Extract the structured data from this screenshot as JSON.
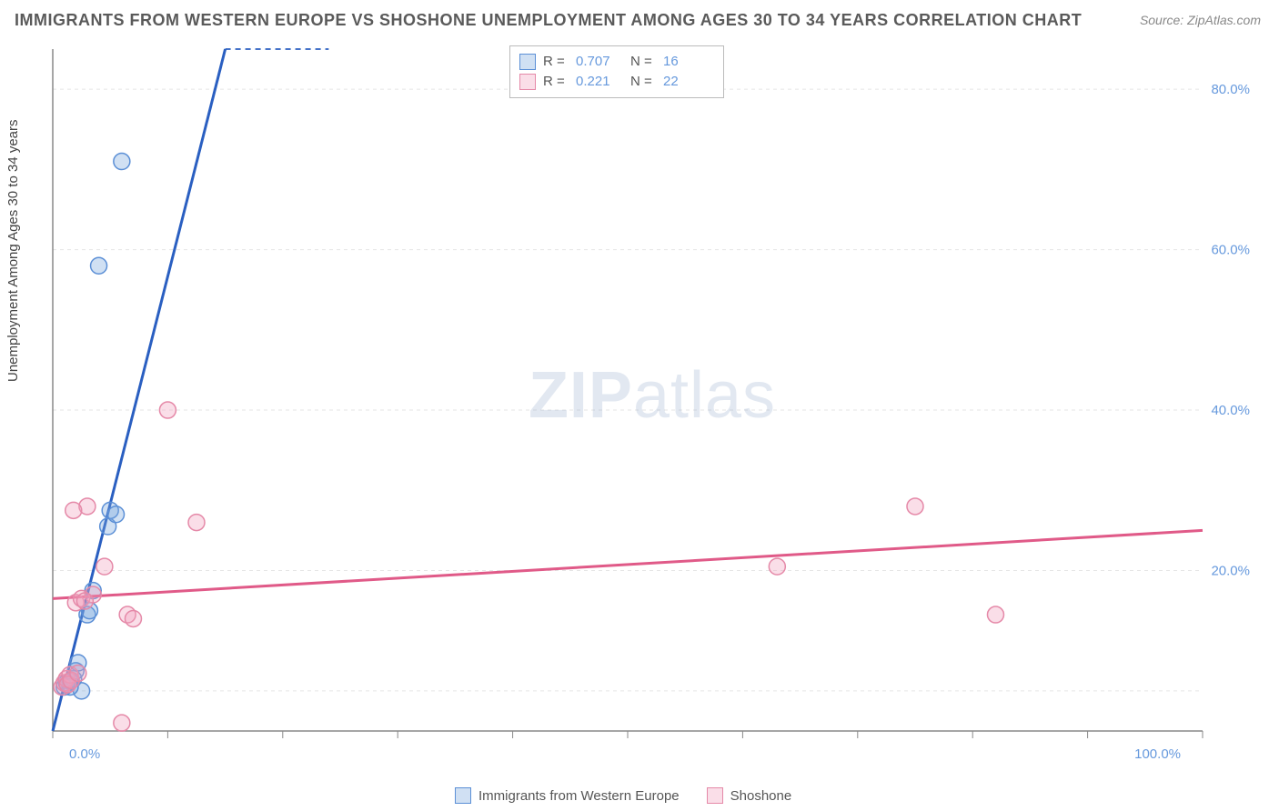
{
  "title": "IMMIGRANTS FROM WESTERN EUROPE VS SHOSHONE UNEMPLOYMENT AMONG AGES 30 TO 34 YEARS CORRELATION CHART",
  "source_label": "Source: ZipAtlas.com",
  "ylabel": "Unemployment Among Ages 30 to 34 years",
  "watermark": {
    "part1": "ZIP",
    "part2": "atlas"
  },
  "chart": {
    "type": "scatter",
    "background_color": "#ffffff",
    "grid_color": "#e5e5e5",
    "axis_color": "#888888",
    "tick_label_color": "#6699dd",
    "xlim": [
      0,
      100
    ],
    "ylim": [
      0,
      85
    ],
    "x_ticks": [
      0,
      10,
      20,
      30,
      40,
      50,
      60,
      70,
      80,
      90,
      100
    ],
    "x_tick_labels": {
      "0": "0.0%",
      "100": "100.0%"
    },
    "y_ticks": [
      5,
      20,
      40,
      60,
      80
    ],
    "y_tick_labels": {
      "20": "20.0%",
      "40": "40.0%",
      "60": "60.0%",
      "80": "80.0%"
    },
    "series": [
      {
        "id": "immigrants",
        "label": "Immigrants from Western Europe",
        "color_stroke": "#5b8fd6",
        "color_fill": "rgba(120,165,220,0.35)",
        "marker_radius": 9,
        "trend": {
          "slope": 10.0,
          "intercept": -5,
          "solid_xmax": 15,
          "dashed_xmax": 24,
          "stroke": "#2a5fc1",
          "width": 3
        },
        "R": "0.707",
        "N": "16",
        "points": [
          [
            1.0,
            5.5
          ],
          [
            1.2,
            6.0
          ],
          [
            1.5,
            6.2
          ],
          [
            1.8,
            6.5
          ],
          [
            2.0,
            7.5
          ],
          [
            2.2,
            8.5
          ],
          [
            2.5,
            5.0
          ],
          [
            3.0,
            14.5
          ],
          [
            3.2,
            15.0
          ],
          [
            3.5,
            17.5
          ],
          [
            4.8,
            25.5
          ],
          [
            5.0,
            27.5
          ],
          [
            5.5,
            27.0
          ],
          [
            4.0,
            58.0
          ],
          [
            6.0,
            71.0
          ],
          [
            1.5,
            5.5
          ]
        ]
      },
      {
        "id": "shoshone",
        "label": "Shoshone",
        "color_stroke": "#e589a8",
        "color_fill": "rgba(240,160,190,0.35)",
        "marker_radius": 9,
        "trend": {
          "slope": 0.085,
          "intercept": 16.5,
          "solid_xmax": 100,
          "dashed_xmax": 100,
          "stroke": "#e05a88",
          "width": 3
        },
        "R": "0.221",
        "N": "22",
        "points": [
          [
            0.8,
            5.5
          ],
          [
            1.0,
            6.0
          ],
          [
            1.2,
            6.5
          ],
          [
            1.5,
            7.0
          ],
          [
            2.0,
            16.0
          ],
          [
            2.5,
            16.5
          ],
          [
            3.0,
            28.0
          ],
          [
            1.8,
            27.5
          ],
          [
            4.5,
            20.5
          ],
          [
            6.5,
            14.5
          ],
          [
            7.0,
            14.0
          ],
          [
            10.0,
            40.0
          ],
          [
            12.5,
            26.0
          ],
          [
            6.0,
            1.0
          ],
          [
            63.0,
            20.5
          ],
          [
            75.0,
            28.0
          ],
          [
            82.0,
            14.5
          ],
          [
            3.5,
            17.0
          ],
          [
            1.3,
            5.8
          ],
          [
            1.6,
            6.3
          ],
          [
            2.2,
            7.2
          ],
          [
            2.8,
            16.2
          ]
        ]
      }
    ]
  },
  "legend_top": {
    "r_label": "R =",
    "n_label": "N ="
  },
  "legend_bottom": {
    "items": [
      "immigrants",
      "shoshone"
    ]
  }
}
